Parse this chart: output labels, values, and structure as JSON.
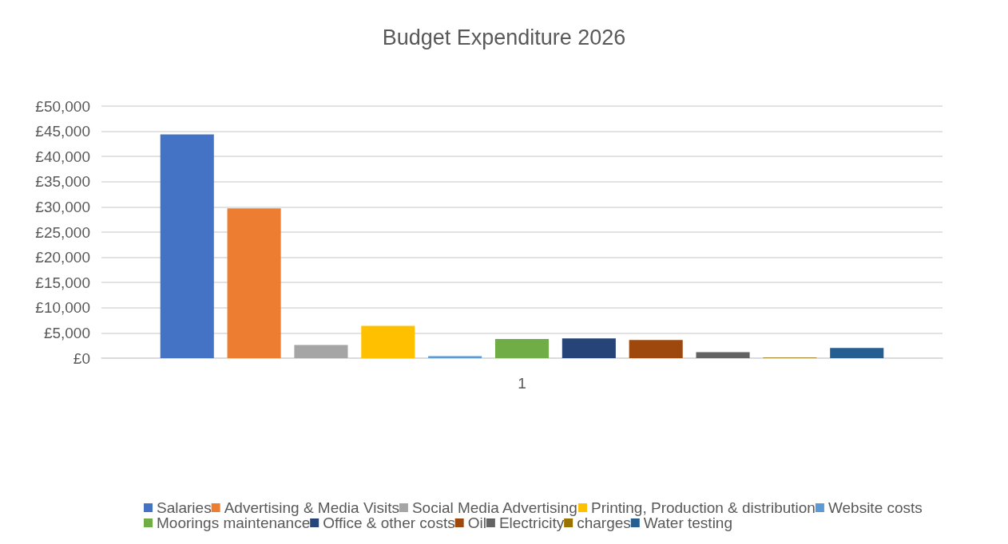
{
  "chart_data": {
    "type": "bar",
    "title": "Budget Expenditure 2026",
    "categories": [
      "1"
    ],
    "series": [
      {
        "name": "Salaries",
        "color": "#4472c4",
        "values": [
          44400
        ]
      },
      {
        "name": "Advertising & Media Visits",
        "color": "#ed7d31",
        "values": [
          29700
        ]
      },
      {
        "name": "Social Media Advertising",
        "color": "#a5a5a5",
        "values": [
          2600
        ]
      },
      {
        "name": "Printing, Production & distribution",
        "color": "#ffc000",
        "values": [
          6400
        ]
      },
      {
        "name": "Website costs",
        "color": "#5b9bd5",
        "values": [
          400
        ]
      },
      {
        "name": "Moorings maintenance",
        "color": "#70ad47",
        "values": [
          3800
        ]
      },
      {
        "name": "Office & other costs",
        "color": "#264478",
        "values": [
          3900
        ]
      },
      {
        "name": "Oil",
        "color": "#9e480e",
        "values": [
          3600
        ]
      },
      {
        "name": "Electricity",
        "color": "#636363",
        "values": [
          1200
        ]
      },
      {
        "name": "charges",
        "color": "#997300",
        "values": [
          100
        ]
      },
      {
        "name": "Water testing",
        "color": "#255e91",
        "values": [
          2000
        ]
      }
    ],
    "ylim": [
      0,
      50000
    ],
    "yticks": [
      {
        "value": 0,
        "label": "£0"
      },
      {
        "value": 5000,
        "label": "£5,000"
      },
      {
        "value": 10000,
        "label": "£10,000"
      },
      {
        "value": 15000,
        "label": "£15,000"
      },
      {
        "value": 20000,
        "label": "£20,000"
      },
      {
        "value": 25000,
        "label": "£25,000"
      },
      {
        "value": 30000,
        "label": "£30,000"
      },
      {
        "value": 35000,
        "label": "£35,000"
      },
      {
        "value": 40000,
        "label": "£40,000"
      },
      {
        "value": 45000,
        "label": "£45,000"
      },
      {
        "value": 50000,
        "label": "£50,000"
      }
    ],
    "grid": "y",
    "legend": "bottom"
  }
}
